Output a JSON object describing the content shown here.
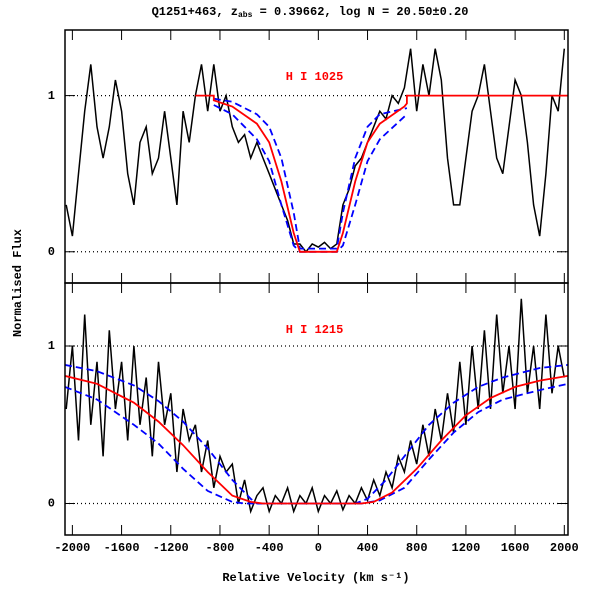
{
  "title": {
    "main": "Q1251+463, z",
    "sub": "abs",
    "rest": " = 0.39662, log N = 20.50±0.20"
  },
  "xlabel": "Relative Velocity (km s⁻¹)",
  "ylabel": "Normalised Flux",
  "chart_data": [
    {
      "type": "line",
      "annotation": "H I 1025",
      "annotation_color": "red",
      "xlim": [
        -2060,
        2030
      ],
      "xticks": [
        -2000,
        -1600,
        -1200,
        -800,
        -400,
        0,
        400,
        800,
        1200,
        1600,
        2000
      ],
      "show_xticklabels": false,
      "ylim": [
        -0.2,
        1.42
      ],
      "yticks": [
        0,
        1
      ],
      "grid": "dotted",
      "series": [
        {
          "color": "black",
          "dash": false,
          "x": [
            -2050,
            -2000,
            -1950,
            -1900,
            -1850,
            -1800,
            -1750,
            -1700,
            -1650,
            -1600,
            -1550,
            -1500,
            -1450,
            -1400,
            -1350,
            -1300,
            -1250,
            -1200,
            -1150,
            -1100,
            -1050,
            -1000,
            -950,
            -900,
            -850,
            -800,
            -750,
            -700,
            -650,
            -600,
            -550,
            -500,
            -450,
            -400,
            -350,
            -300,
            -250,
            -200,
            -150,
            -100,
            -50,
            0,
            50,
            100,
            150,
            200,
            250,
            300,
            350,
            400,
            450,
            500,
            550,
            600,
            650,
            700,
            750,
            800,
            850,
            900,
            950,
            1000,
            1050,
            1100,
            1150,
            1200,
            1250,
            1300,
            1350,
            1400,
            1450,
            1500,
            1550,
            1600,
            1650,
            1700,
            1750,
            1800,
            1850,
            1900,
            1950,
            2000
          ],
          "values": [
            0.3,
            0.1,
            0.5,
            0.9,
            1.2,
            0.8,
            0.6,
            0.8,
            1.1,
            0.9,
            0.5,
            0.3,
            0.7,
            0.8,
            0.5,
            0.6,
            0.9,
            0.6,
            0.3,
            0.9,
            0.7,
            1.0,
            1.2,
            0.9,
            1.2,
            0.9,
            1.0,
            0.8,
            0.7,
            0.75,
            0.6,
            0.7,
            0.6,
            0.5,
            0.4,
            0.3,
            0.2,
            0.05,
            0.05,
            0.0,
            0.05,
            0.03,
            0.06,
            0.02,
            0.05,
            0.3,
            0.4,
            0.55,
            0.6,
            0.7,
            0.8,
            0.9,
            0.85,
            1.0,
            0.95,
            1.05,
            1.3,
            0.9,
            1.2,
            1.0,
            1.3,
            1.1,
            0.6,
            0.3,
            0.3,
            0.6,
            0.9,
            1.0,
            1.2,
            0.9,
            0.6,
            0.5,
            0.8,
            1.1,
            1.0,
            0.7,
            0.3,
            0.1,
            0.5,
            1.0,
            0.9,
            1.3
          ]
        },
        {
          "color": "blue",
          "dash": true,
          "x": [
            -850,
            -700,
            -500,
            -400,
            -300,
            -200,
            -150,
            150,
            200,
            300,
            400,
            500,
            720
          ],
          "values": [
            0.98,
            0.96,
            0.88,
            0.8,
            0.6,
            0.25,
            0.02,
            0.02,
            0.25,
            0.6,
            0.8,
            0.88,
            0.92
          ]
        },
        {
          "color": "blue",
          "dash": true,
          "x": [
            -850,
            -700,
            -500,
            -400,
            -300,
            -200,
            -150,
            150,
            200,
            300,
            400,
            500,
            720
          ],
          "values": [
            0.94,
            0.88,
            0.72,
            0.58,
            0.3,
            0.04,
            0,
            0,
            0.04,
            0.3,
            0.58,
            0.72,
            0.88
          ]
        },
        {
          "color": "red",
          "dash": false,
          "x": [
            -1000,
            -850,
            -850,
            -700,
            -500,
            -400,
            -300,
            -200,
            -150,
            150,
            200,
            300,
            400,
            500,
            700,
            720,
            720,
            2030
          ],
          "values": [
            1,
            1,
            0.97,
            0.93,
            0.82,
            0.7,
            0.45,
            0.12,
            0,
            0,
            0.12,
            0.45,
            0.7,
            0.82,
            0.93,
            0.95,
            1,
            1
          ]
        }
      ]
    },
    {
      "type": "line",
      "annotation": "H I 1215",
      "annotation_color": "red",
      "xlim": [
        -2060,
        2030
      ],
      "xticks": [
        -2000,
        -1600,
        -1200,
        -800,
        -400,
        0,
        400,
        800,
        1200,
        1600,
        2000
      ],
      "show_xticklabels": true,
      "ylim": [
        -0.2,
        1.4
      ],
      "yticks": [
        0,
        1
      ],
      "grid": "dotted",
      "series": [
        {
          "color": "black",
          "dash": false,
          "x": [
            -2050,
            -2000,
            -1950,
            -1900,
            -1850,
            -1800,
            -1750,
            -1700,
            -1650,
            -1600,
            -1550,
            -1500,
            -1450,
            -1400,
            -1350,
            -1300,
            -1250,
            -1200,
            -1150,
            -1100,
            -1050,
            -1000,
            -950,
            -900,
            -850,
            -800,
            -750,
            -700,
            -650,
            -600,
            -550,
            -500,
            -450,
            -400,
            -350,
            -300,
            -250,
            -200,
            -150,
            -100,
            -50,
            0,
            50,
            100,
            150,
            200,
            250,
            300,
            350,
            400,
            450,
            500,
            550,
            600,
            650,
            700,
            750,
            800,
            850,
            900,
            950,
            1000,
            1050,
            1100,
            1150,
            1200,
            1250,
            1300,
            1350,
            1400,
            1450,
            1500,
            1550,
            1600,
            1650,
            1700,
            1750,
            1800,
            1850,
            1900,
            1950,
            2000
          ],
          "values": [
            0.6,
            1.0,
            0.4,
            1.2,
            0.5,
            0.9,
            0.3,
            1.1,
            0.6,
            0.9,
            0.4,
            1.0,
            0.5,
            0.8,
            0.3,
            0.9,
            0.5,
            0.7,
            0.2,
            0.6,
            0.4,
            0.5,
            0.2,
            0.4,
            0.1,
            0.3,
            0.2,
            0.25,
            0.0,
            0.15,
            -0.05,
            0.05,
            0.1,
            -0.05,
            0.05,
            0.0,
            0.1,
            -0.05,
            0.05,
            0.0,
            0.1,
            -0.05,
            0.05,
            0.0,
            0.08,
            -0.04,
            0.05,
            0.0,
            0.1,
            0.02,
            0.15,
            0.05,
            0.2,
            0.1,
            0.3,
            0.2,
            0.4,
            0.25,
            0.5,
            0.3,
            0.6,
            0.4,
            0.7,
            0.45,
            0.9,
            0.5,
            1.0,
            0.6,
            1.1,
            0.6,
            1.2,
            0.7,
            1.0,
            0.6,
            1.3,
            0.7,
            1.0,
            0.6,
            1.2,
            0.7,
            1.0,
            0.8
          ]
        },
        {
          "color": "blue",
          "dash": true,
          "x": [
            -2060,
            -1800,
            -1500,
            -1300,
            -1100,
            -900,
            -700,
            -550,
            -500,
            300,
            400,
            550,
            700,
            900,
            1100,
            1300,
            1500,
            1800,
            2030
          ],
          "values": [
            0.88,
            0.84,
            0.75,
            0.65,
            0.52,
            0.35,
            0.15,
            0.03,
            0,
            0,
            0.03,
            0.15,
            0.3,
            0.5,
            0.64,
            0.74,
            0.8,
            0.86,
            0.88
          ]
        },
        {
          "color": "blue",
          "dash": true,
          "x": [
            -2060,
            -1800,
            -1500,
            -1300,
            -1100,
            -900,
            -700,
            -600,
            -400,
            200,
            350,
            500,
            700,
            900,
            1100,
            1300,
            1500,
            1800,
            2030
          ],
          "values": [
            0.74,
            0.66,
            0.5,
            0.38,
            0.22,
            0.08,
            0.01,
            0,
            0,
            0,
            0,
            0.02,
            0.1,
            0.28,
            0.45,
            0.58,
            0.66,
            0.72,
            0.76
          ]
        },
        {
          "color": "red",
          "dash": false,
          "x": [
            -2060,
            -1800,
            -1500,
            -1300,
            -1100,
            -900,
            -700,
            -550,
            -450,
            350,
            450,
            600,
            800,
            1000,
            1200,
            1400,
            1600,
            1800,
            2030
          ],
          "values": [
            0.81,
            0.76,
            0.64,
            0.52,
            0.37,
            0.2,
            0.05,
            0.01,
            0,
            0,
            0.01,
            0.07,
            0.22,
            0.4,
            0.56,
            0.67,
            0.74,
            0.78,
            0.81
          ]
        }
      ]
    }
  ]
}
